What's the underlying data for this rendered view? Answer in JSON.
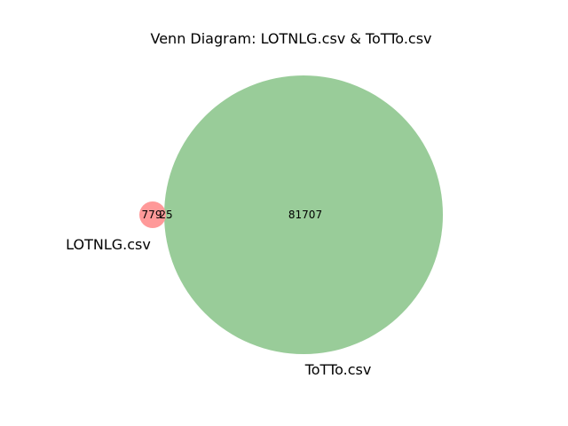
{
  "title": "Venn Diagram: LOTNLG.csv & ToTTo.csv",
  "sets": {
    "a": {
      "label": "LOTNLG.csv",
      "color": "#ff9999"
    },
    "b": {
      "label": "ToTTo.csv",
      "color": "#99cc99"
    }
  },
  "regions": {
    "a_only": "779",
    "a_and_b": "25",
    "b_only": "81707"
  },
  "chart_data": {
    "type": "venn",
    "title": "Venn Diagram: LOTNLG.csv & ToTTo.csv",
    "sets": [
      "LOTNLG.csv",
      "ToTTo.csv"
    ],
    "subsets": {
      "LOTNLG.csv only": 779,
      "LOTNLG.csv & ToTTo.csv": 25,
      "ToTTo.csv only": 81707
    }
  }
}
